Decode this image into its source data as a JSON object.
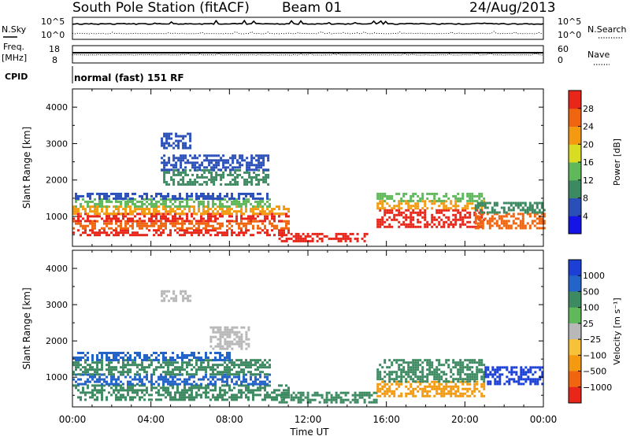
{
  "header": {
    "station": "South Pole Station (fitACF)",
    "beam": "Beam 01",
    "date": "24/Aug/2013"
  },
  "aux_panels": {
    "nsky": {
      "label": "N.Sky",
      "ticks": [
        "10^5",
        "10^0"
      ]
    },
    "nsearch": {
      "label": "N.Search",
      "ticks": [
        "10^5",
        "10^0"
      ]
    },
    "freq": {
      "label_top": "Freq.",
      "label_unit": "[MHz]",
      "ticks": [
        "18",
        "8"
      ]
    },
    "nave": {
      "label": "Nave",
      "ticks": [
        "60",
        "0"
      ]
    },
    "cpid": {
      "label": "CPID",
      "value": "normal (fast) 151 RF"
    }
  },
  "chart_data": [
    {
      "type": "heatmap",
      "panel": "power",
      "xlabel": "Time UT",
      "ylabel": "Slant Range [km]",
      "x_ticks": [
        "00:00",
        "04:00",
        "08:00",
        "12:00",
        "16:00",
        "20:00",
        "00:00"
      ],
      "xlim": [
        0,
        24
      ],
      "ylim": [
        180,
        4500
      ],
      "y_ticks": [
        1000,
        2000,
        3000,
        4000
      ],
      "colorbar": {
        "label": "Power [dB]",
        "ticks": [
          "4",
          "8",
          "12",
          "16",
          "20",
          "24",
          "28"
        ],
        "colors": [
          "#1414e6",
          "#2a4fb8",
          "#3d8a62",
          "#5fb85a",
          "#d8dc22",
          "#f39a10",
          "#f06510",
          "#e8261a"
        ]
      },
      "bands": [
        {
          "t": [
            0.0,
            11.0
          ],
          "r": [
            500,
            650
          ],
          "color": "#e8261a"
        },
        {
          "t": [
            0.0,
            11.0
          ],
          "r": [
            650,
            900
          ],
          "color": "#f06510"
        },
        {
          "t": [
            0.0,
            11.0
          ],
          "r": [
            900,
            1100
          ],
          "color": "#e8261a"
        },
        {
          "t": [
            0.0,
            11.0
          ],
          "r": [
            1100,
            1300
          ],
          "color": "#f39a10"
        },
        {
          "t": [
            0.0,
            10.0
          ],
          "r": [
            1300,
            1500
          ],
          "color": "#5fb85a"
        },
        {
          "t": [
            0.0,
            10.0
          ],
          "r": [
            1500,
            1650
          ],
          "color": "#2a4fb8"
        },
        {
          "t": [
            10.5,
            15.0
          ],
          "r": [
            350,
            550
          ],
          "color": "#e8261a"
        },
        {
          "t": [
            15.5,
            21.0
          ],
          "r": [
            700,
            1200
          ],
          "color": "#e8261a"
        },
        {
          "t": [
            15.5,
            21.0
          ],
          "r": [
            1200,
            1450
          ],
          "color": "#f39a10"
        },
        {
          "t": [
            15.5,
            21.0
          ],
          "r": [
            1450,
            1650
          ],
          "color": "#5fb85a"
        },
        {
          "t": [
            20.5,
            24.0
          ],
          "r": [
            700,
            1100
          ],
          "color": "#f06510"
        },
        {
          "t": [
            20.5,
            24.0
          ],
          "r": [
            1100,
            1400
          ],
          "color": "#3d8a62"
        },
        {
          "t": [
            4.5,
            10.0
          ],
          "r": [
            1900,
            2300
          ],
          "color": "#3d8a62"
        },
        {
          "t": [
            4.5,
            10.0
          ],
          "r": [
            2300,
            2700
          ],
          "color": "#2a4fb8"
        },
        {
          "t": [
            4.5,
            6.0
          ],
          "r": [
            2900,
            3300
          ],
          "color": "#2a4fb8"
        }
      ]
    },
    {
      "type": "heatmap",
      "panel": "velocity",
      "xlabel": "Time UT",
      "ylabel": "Slant Range [km]",
      "x_ticks": [
        "00:00",
        "04:00",
        "08:00",
        "12:00",
        "16:00",
        "20:00",
        "00:00"
      ],
      "xlim": [
        0,
        24
      ],
      "ylim": [
        180,
        4500
      ],
      "y_ticks": [
        1000,
        2000,
        3000,
        4000
      ],
      "colorbar": {
        "label": "Velocity [m s⁻¹]",
        "ticks": [
          "1000",
          "500",
          "100",
          "25",
          "−25",
          "−100",
          "−500",
          "−1000"
        ],
        "colors": [
          "#1c3fd6",
          "#2464c8",
          "#3d8a62",
          "#5fb85a",
          "#b8b8b8",
          "#f7c23a",
          "#f39a10",
          "#f06510",
          "#e8261a"
        ]
      },
      "bands": [
        {
          "t": [
            0.0,
            11.0
          ],
          "r": [
            350,
            800
          ],
          "color": "#3d8a62"
        },
        {
          "t": [
            0.0,
            10.0
          ],
          "r": [
            800,
            1100
          ],
          "color": "#2464c8"
        },
        {
          "t": [
            0.0,
            10.0
          ],
          "r": [
            1100,
            1500
          ],
          "color": "#3d8a62"
        },
        {
          "t": [
            0.0,
            8.0
          ],
          "r": [
            1500,
            1700
          ],
          "color": "#2464c8"
        },
        {
          "t": [
            10.5,
            15.5
          ],
          "r": [
            300,
            600
          ],
          "color": "#3d8a62"
        },
        {
          "t": [
            15.5,
            21.0
          ],
          "r": [
            500,
            900
          ],
          "color": "#f39a10"
        },
        {
          "t": [
            15.5,
            21.0
          ],
          "r": [
            900,
            1500
          ],
          "color": "#3d8a62"
        },
        {
          "t": [
            21.0,
            24.0
          ],
          "r": [
            800,
            1300
          ],
          "color": "#1c3fd6"
        },
        {
          "t": [
            7.0,
            9.0
          ],
          "r": [
            1800,
            2400
          ],
          "color": "#b8b8b8"
        },
        {
          "t": [
            4.5,
            6.0
          ],
          "r": [
            3100,
            3400
          ],
          "color": "#b8b8b8"
        }
      ]
    }
  ]
}
